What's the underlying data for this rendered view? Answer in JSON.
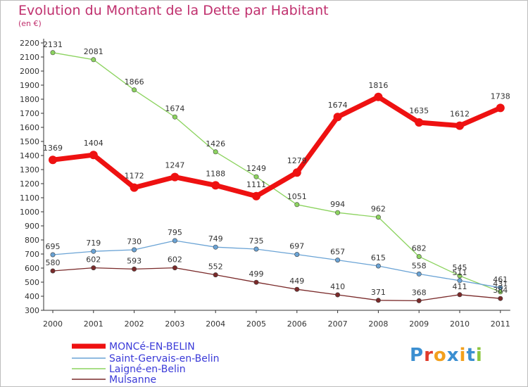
{
  "header": {
    "title": "Evolution du Montant de la Dette par Habitant",
    "subtitle": "(en €)"
  },
  "logo": {
    "letters": [
      "P",
      "r",
      "o",
      "x",
      "i",
      "t",
      "i"
    ],
    "colors": [
      "#3b8fd1",
      "#e03a2a",
      "#f2a01e",
      "#3b8fd1",
      "#f2a01e",
      "#3b8fd1",
      "#8cc63f"
    ]
  },
  "chart_data": {
    "type": "line",
    "title": "Evolution du Montant de la Dette par Habitant",
    "ylabel": "(en €)",
    "x": [
      "2000",
      "2001",
      "2002",
      "2003",
      "2004",
      "2005",
      "2006",
      "2007",
      "2008",
      "2009",
      "2010",
      "2011"
    ],
    "ylim": [
      300,
      2200
    ],
    "yticks": [
      300,
      400,
      500,
      600,
      700,
      800,
      900,
      1000,
      1100,
      1200,
      1300,
      1400,
      1500,
      1600,
      1700,
      1800,
      1900,
      2000,
      2100,
      2200
    ],
    "grid": false,
    "legend": "bottom-left",
    "series": [
      {
        "name": "MONCé-EN-BELIN",
        "color": "#ee1111",
        "values": [
          1369,
          1404,
          1172,
          1247,
          1188,
          1111,
          1279,
          1674,
          1816,
          1635,
          1612,
          1738
        ]
      },
      {
        "name": "Saint-Gervais-en-Belin",
        "color": "#6aa3d5",
        "values": [
          695,
          719,
          730,
          795,
          749,
          735,
          697,
          657,
          615,
          558,
          511,
          461
        ]
      },
      {
        "name": "Laigné-en-Belin",
        "color": "#8cd35f",
        "values": [
          2131,
          2081,
          1866,
          1674,
          1426,
          1249,
          1051,
          994,
          962,
          682,
          545,
          431
        ]
      },
      {
        "name": "Mulsanne",
        "color": "#7a2a2a",
        "values": [
          580,
          602,
          593,
          602,
          552,
          499,
          449,
          410,
          371,
          368,
          411,
          384
        ]
      }
    ]
  }
}
